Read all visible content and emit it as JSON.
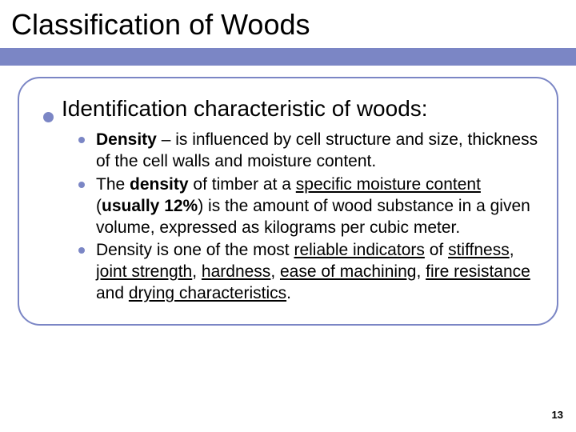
{
  "colors": {
    "accent": "#7b86c5",
    "text": "#000000",
    "background": "#ffffff"
  },
  "typography": {
    "title_fontsize": 36,
    "main_fontsize": 28,
    "sub_fontsize": 21,
    "page_number_fontsize": 13
  },
  "title": "Classification of Woods",
  "main_bullet": "Identification characteristic of woods:",
  "sub_bullets": [
    {
      "parts": [
        {
          "text": "Density",
          "bold": true
        },
        {
          "text": " – is influenced by cell structure and size, thickness of the cell walls and moisture content."
        }
      ]
    },
    {
      "parts": [
        {
          "text": "The "
        },
        {
          "text": "density",
          "bold": true
        },
        {
          "text": " of timber at a "
        },
        {
          "text": "specific moisture content",
          "underline": true
        },
        {
          "text": " ("
        },
        {
          "text": "usually 12%",
          "bold": true
        },
        {
          "text": ") is the amount of wood substance in a given volume, expressed as kilograms per cubic meter."
        }
      ]
    },
    {
      "parts": [
        {
          "text": "Density is one of the most "
        },
        {
          "text": "reliable indicators",
          "underline": true
        },
        {
          "text": " of "
        },
        {
          "text": "stiffness",
          "underline": true
        },
        {
          "text": ", "
        },
        {
          "text": "joint strength",
          "underline": true
        },
        {
          "text": ", "
        },
        {
          "text": "hardness",
          "underline": true
        },
        {
          "text": ", "
        },
        {
          "text": "ease of machining",
          "underline": true
        },
        {
          "text": ", "
        },
        {
          "text": "fire resistance",
          "underline": true
        },
        {
          "text": " and "
        },
        {
          "text": "drying characteristics",
          "underline": true
        },
        {
          "text": "."
        }
      ]
    }
  ],
  "page_number": "13"
}
